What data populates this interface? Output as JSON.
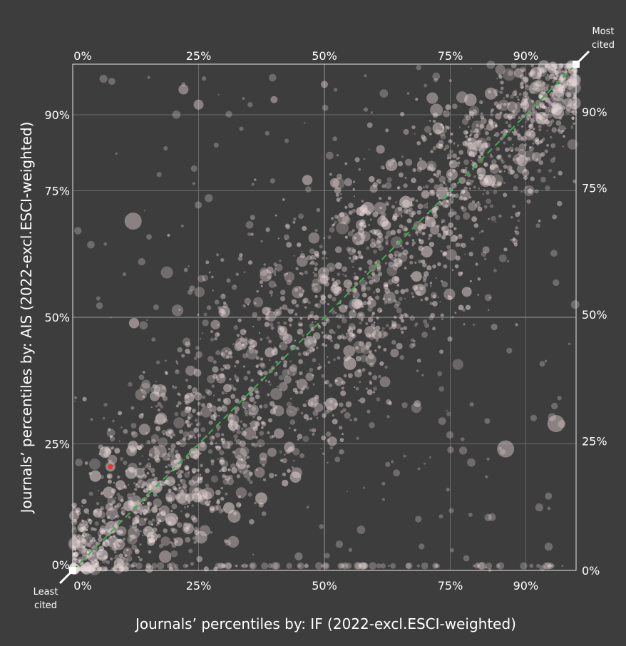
{
  "chart_data": {
    "type": "scatter",
    "xlabel": "Journals’ percentiles by: IF (2022-excl.ESCI-weighted)",
    "ylabel": "Journals’ percentiles by: AIS (2022-excl.ESCI-weighted)",
    "xlim": [
      0,
      100
    ],
    "ylim": [
      0,
      100
    ],
    "x_ticks": [
      0,
      25,
      50,
      75,
      90
    ],
    "y_ticks": [
      0,
      25,
      50,
      75,
      90
    ],
    "x_tick_labels": [
      "0%",
      "25%",
      "50%",
      "75%",
      "90%"
    ],
    "y_tick_labels": [
      "0%",
      "25%",
      "50%",
      "75%",
      "90%"
    ],
    "corner_labels": {
      "top_right": [
        "Most",
        "cited"
      ],
      "bottom_left": [
        "Least",
        "cited"
      ]
    },
    "reference_line": {
      "style": "dashed",
      "color": "#3fae49",
      "from": [
        0,
        0
      ],
      "to": [
        100,
        100
      ]
    },
    "highlight_point": {
      "x": 7.5,
      "y": 20.5,
      "color": "#ff2a2a"
    },
    "grid": true,
    "point_color": "#e8d8d8",
    "background": "#3d3d3d",
    "notable_points": [
      {
        "x": 86,
        "y": 24,
        "size": "large"
      },
      {
        "x": 96,
        "y": 29,
        "size": "large"
      },
      {
        "x": 12,
        "y": 69,
        "size": "large"
      },
      {
        "x": 22,
        "y": 95,
        "size": "medium"
      },
      {
        "x": 25,
        "y": 92,
        "size": "medium"
      },
      {
        "x": 50,
        "y": 96,
        "size": "small"
      },
      {
        "x": 40,
        "y": 93,
        "size": "small"
      }
    ]
  }
}
